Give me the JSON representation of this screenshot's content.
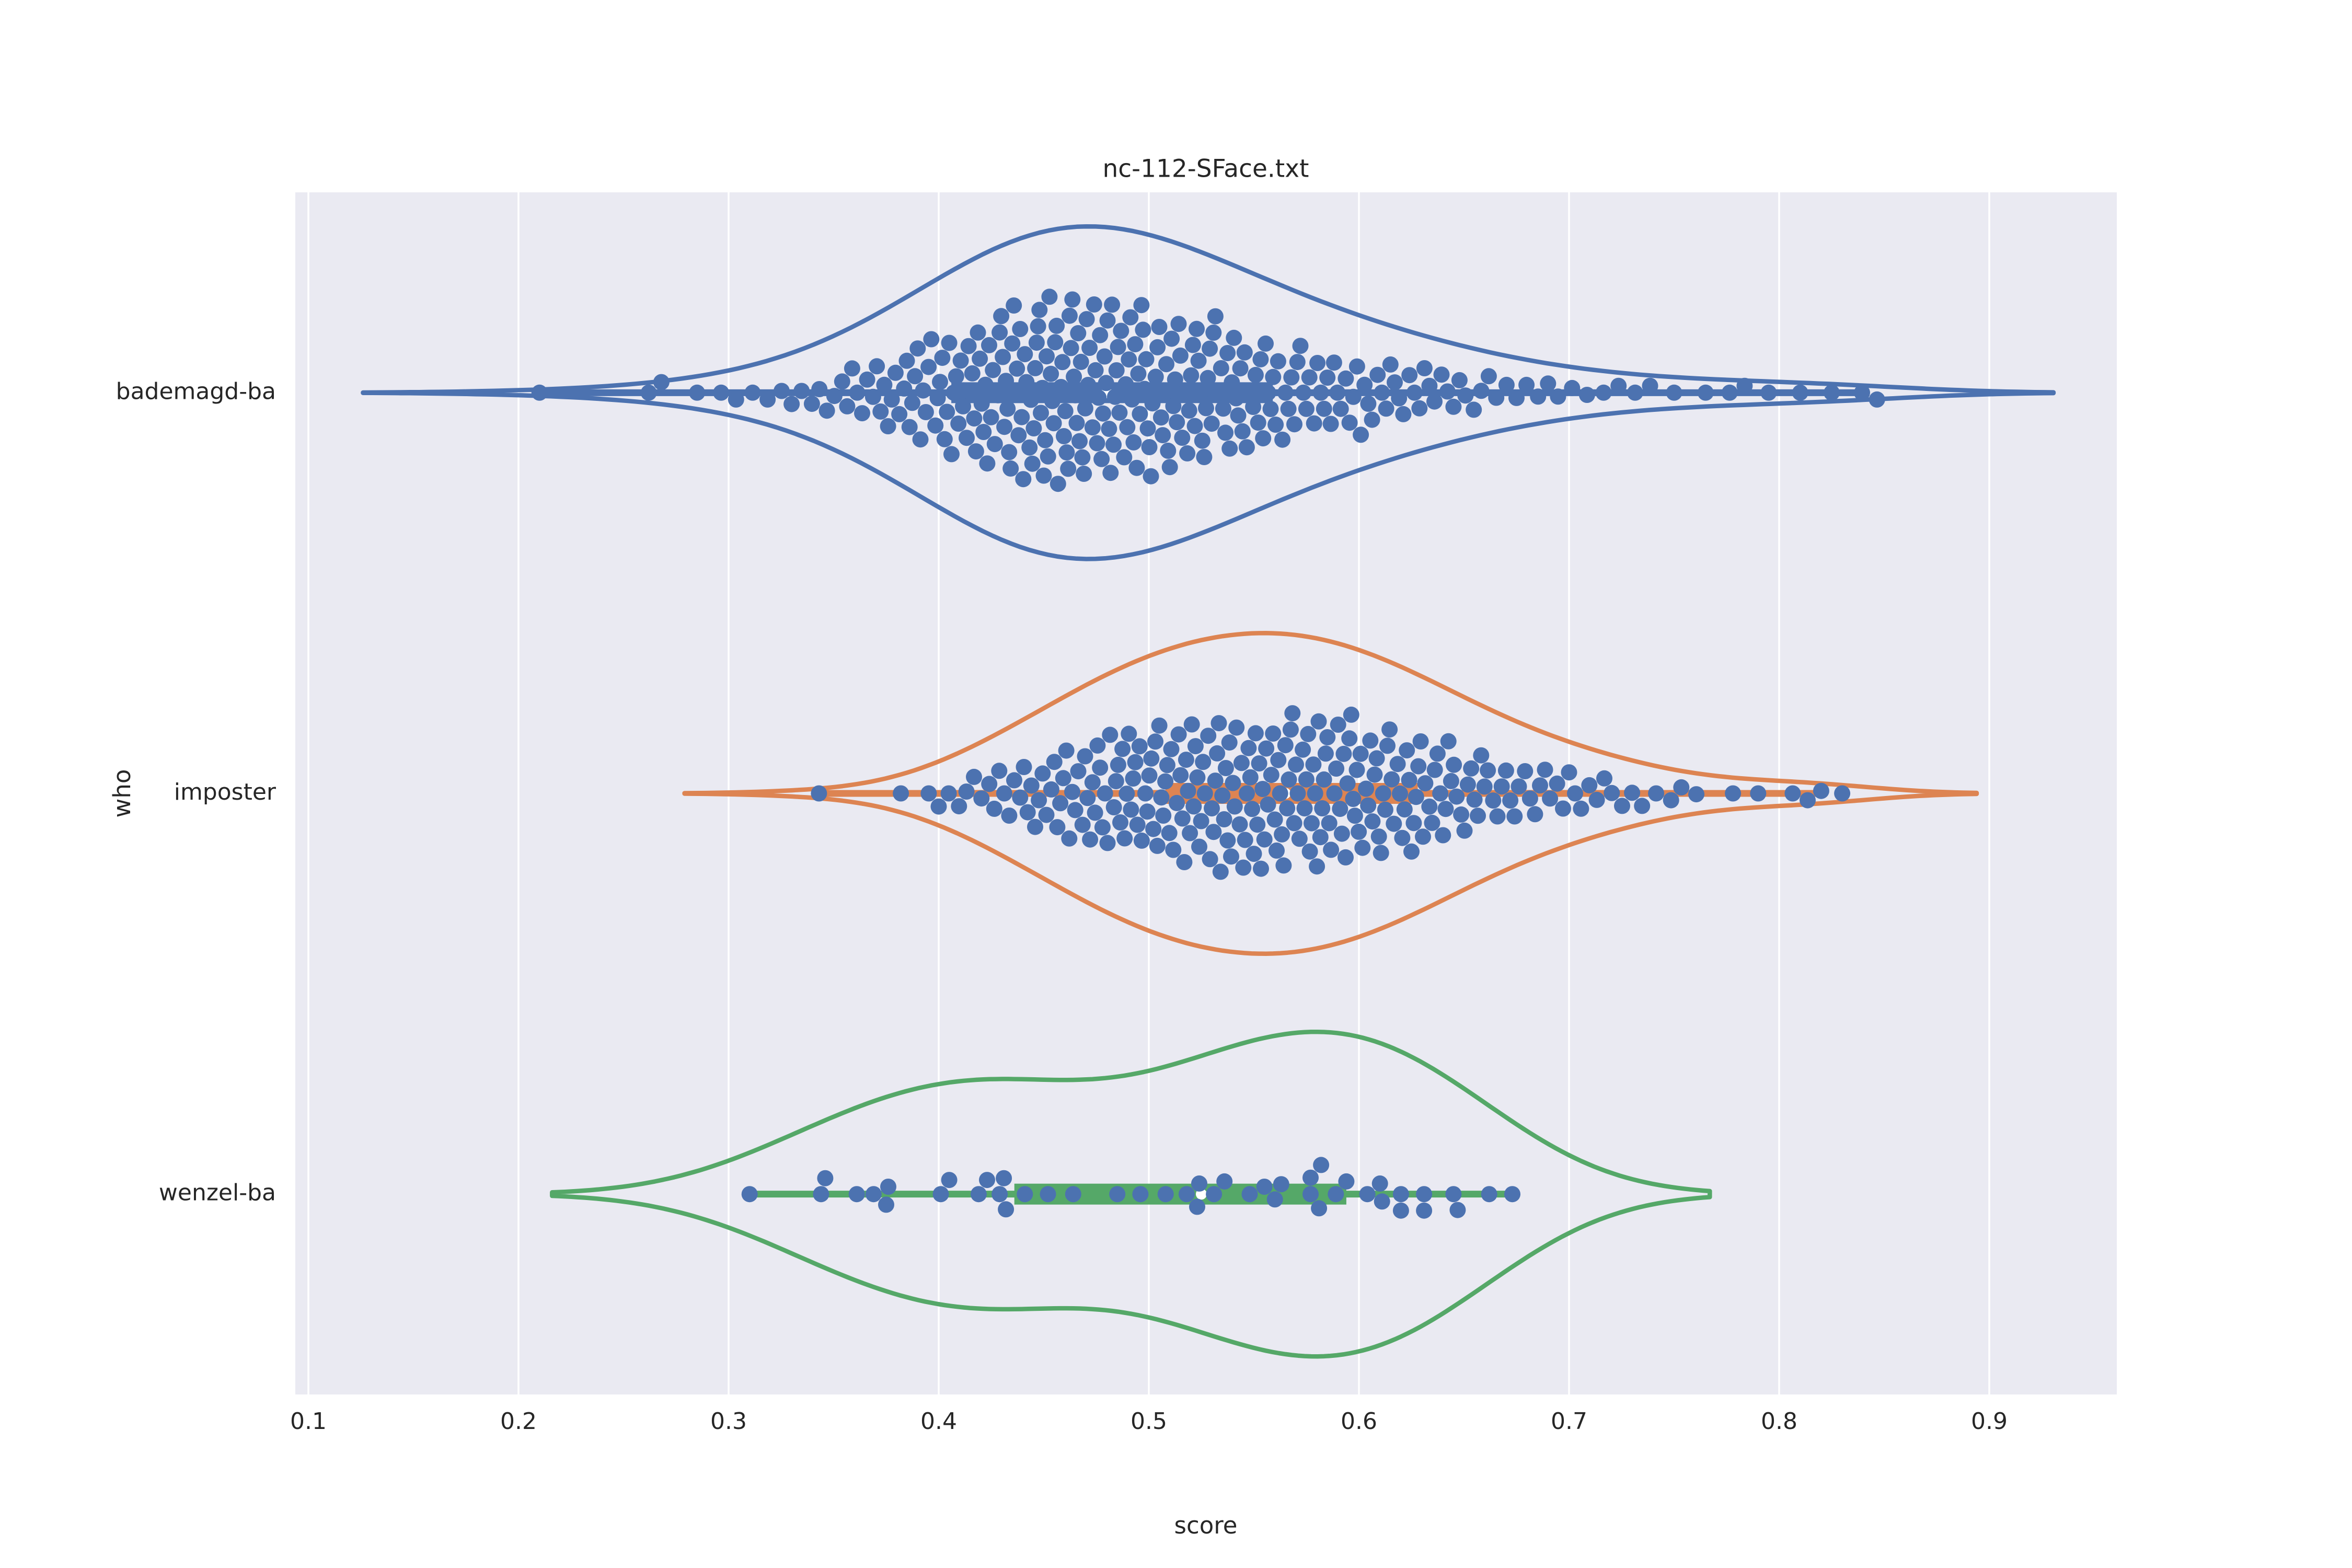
{
  "figure": {
    "title": "nc-112-SFace.txt",
    "background_color": "#ffffff",
    "plot_background_color": "#eaeaf2",
    "grid_color": "#ffffff",
    "text_color": "#262626"
  },
  "chart_data": {
    "type": "violin+swarm",
    "title": "nc-112-SFace.txt",
    "xlabel": "score",
    "ylabel": "who",
    "xlim": [
      0.094,
      0.961
    ],
    "x_ticks": [
      "0.1",
      "0.2",
      "0.3",
      "0.4",
      "0.5",
      "0.6",
      "0.7",
      "0.8",
      "0.9"
    ],
    "grid": "vertical-only",
    "legend": "none",
    "point_color": "#4c72b0",
    "categories": [
      "bademagd-ba",
      "imposter",
      "wenzel-ba"
    ],
    "series": [
      {
        "label": "bademagd-ba",
        "color": "#4c72b0",
        "data_extent": [
          0.21,
          0.85
        ],
        "violin": {
          "bandwidth": 0.042,
          "cut": 2,
          "max_halfwidth_frac": 0.83,
          "tip_lo": 0.126,
          "tip_hi": 0.936
        },
        "box": {
          "whisker_lo": 0.21,
          "q1": 0.406,
          "median": 0.48,
          "q3": 0.559,
          "whisker_hi": 0.843
        },
        "score_bins": {
          "bin_width": 0.015,
          "bins": [
            [
              0.21,
              1
            ],
            [
              0.262,
              1
            ],
            [
              0.268,
              1
            ],
            [
              0.285,
              1
            ],
            [
              0.3,
              2
            ],
            [
              0.315,
              2
            ],
            [
              0.33,
              3
            ],
            [
              0.345,
              4
            ],
            [
              0.36,
              6
            ],
            [
              0.375,
              8
            ],
            [
              0.39,
              11
            ],
            [
              0.405,
              13
            ],
            [
              0.42,
              16
            ],
            [
              0.435,
              19
            ],
            [
              0.45,
              21
            ],
            [
              0.465,
              21
            ],
            [
              0.48,
              20
            ],
            [
              0.495,
              19
            ],
            [
              0.51,
              17
            ],
            [
              0.525,
              16
            ],
            [
              0.54,
              14
            ],
            [
              0.555,
              12
            ],
            [
              0.57,
              10
            ],
            [
              0.585,
              9
            ],
            [
              0.6,
              8
            ],
            [
              0.615,
              7
            ],
            [
              0.63,
              6
            ],
            [
              0.645,
              5
            ],
            [
              0.66,
              4
            ],
            [
              0.675,
              3
            ],
            [
              0.69,
              3
            ],
            [
              0.705,
              2
            ],
            [
              0.72,
              2
            ],
            [
              0.735,
              2
            ],
            [
              0.75,
              1
            ],
            [
              0.765,
              1
            ],
            [
              0.78,
              2
            ],
            [
              0.795,
              1
            ],
            [
              0.81,
              1
            ],
            [
              0.825,
              1
            ],
            [
              0.843,
              2
            ]
          ]
        }
      },
      {
        "label": "imposter",
        "color": "#dd8452",
        "data_extent": [
          0.343,
          0.83
        ],
        "violin": {
          "bandwidth": 0.032,
          "cut": 2,
          "max_halfwidth_frac": 0.8,
          "tip_lo": 0.279,
          "tip_hi": 0.893
        },
        "box": {
          "whisker_lo": 0.343,
          "q1": 0.508,
          "median": 0.565,
          "q3": 0.628,
          "whisker_hi": 0.82
        },
        "score_bins": {
          "bin_width": 0.015,
          "bins": [
            [
              0.343,
              1
            ],
            [
              0.382,
              1
            ],
            [
              0.4,
              3
            ],
            [
              0.415,
              4
            ],
            [
              0.43,
              6
            ],
            [
              0.445,
              8
            ],
            [
              0.46,
              10
            ],
            [
              0.475,
              12
            ],
            [
              0.49,
              14
            ],
            [
              0.505,
              15
            ],
            [
              0.52,
              16
            ],
            [
              0.535,
              17
            ],
            [
              0.55,
              17
            ],
            [
              0.565,
              17
            ],
            [
              0.58,
              17
            ],
            [
              0.595,
              16
            ],
            [
              0.61,
              14
            ],
            [
              0.625,
              13
            ],
            [
              0.64,
              11
            ],
            [
              0.655,
              9
            ],
            [
              0.67,
              7
            ],
            [
              0.685,
              6
            ],
            [
              0.7,
              5
            ],
            [
              0.715,
              4
            ],
            [
              0.73,
              3
            ],
            [
              0.745,
              2
            ],
            [
              0.757,
              2
            ],
            [
              0.778,
              1
            ],
            [
              0.79,
              1
            ],
            [
              0.81,
              2
            ],
            [
              0.82,
              1
            ],
            [
              0.83,
              1
            ]
          ]
        }
      },
      {
        "label": "wenzel-ba",
        "color": "#55a868",
        "data_extent": [
          0.31,
          0.673
        ],
        "violin": {
          "bandwidth": 0.047,
          "cut": 2,
          "max_halfwidth_frac": 0.81,
          "tip_lo": 0.216,
          "tip_hi": 0.767
        },
        "box": {
          "whisker_lo": 0.31,
          "q1": 0.436,
          "median": 0.525,
          "q3": 0.594,
          "whisker_hi": 0.673
        },
        "points": [
          0.31,
          0.344,
          0.346,
          0.361,
          0.369,
          0.375,
          0.376,
          0.401,
          0.405,
          0.419,
          0.423,
          0.429,
          0.431,
          0.432,
          0.441,
          0.452,
          0.464,
          0.485,
          0.496,
          0.508,
          0.518,
          0.523,
          0.524,
          0.531,
          0.536,
          0.548,
          0.555,
          0.56,
          0.563,
          0.577,
          0.577,
          0.581,
          0.582,
          0.589,
          0.594,
          0.604,
          0.61,
          0.611,
          0.62,
          0.62,
          0.631,
          0.631,
          0.645,
          0.647,
          0.662,
          0.673
        ]
      }
    ]
  }
}
